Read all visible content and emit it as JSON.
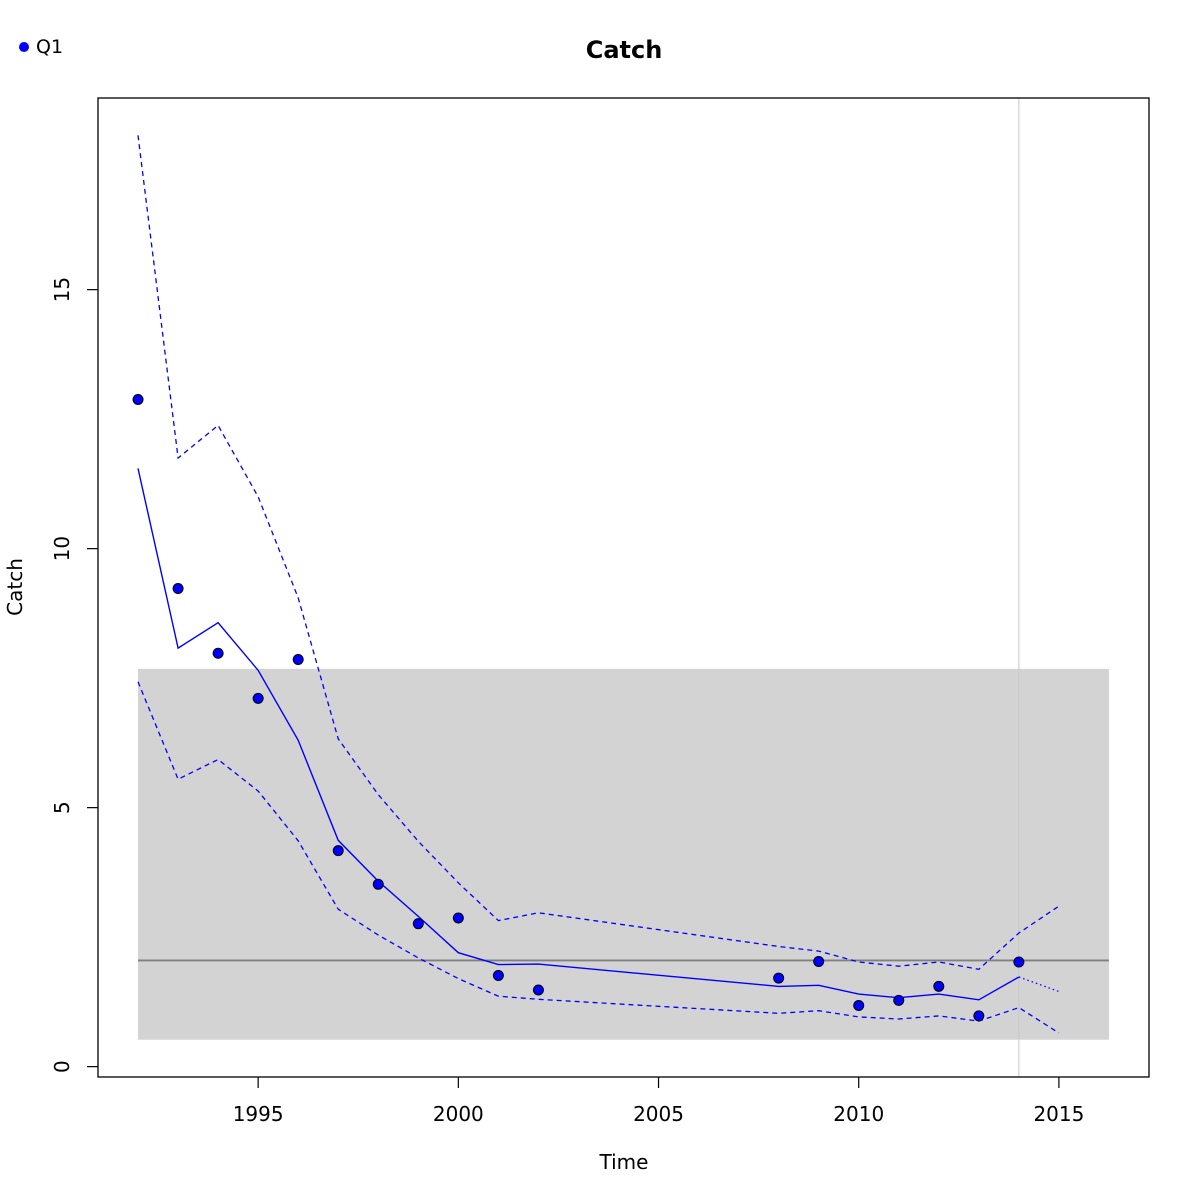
{
  "chart_data": {
    "type": "line",
    "title": "Catch",
    "xlabel": "Time",
    "ylabel": "Catch",
    "xlim": [
      1991.0,
      2017.25
    ],
    "ylim": [
      -0.2,
      18.7
    ],
    "xticks": [
      1995,
      2000,
      2005,
      2010,
      2015
    ],
    "yticks": [
      0,
      5,
      10,
      15
    ],
    "grid": false,
    "legend": {
      "position": "top-left",
      "entries": [
        {
          "name": "Q1",
          "color": "#0000ff",
          "marker": "filled-circle"
        }
      ]
    },
    "shaded_band": {
      "x": [
        1992,
        2016.25
      ],
      "y": [
        0.52,
        7.68
      ],
      "color": "#d3d3d3"
    },
    "horizontal_line": {
      "y": 2.05,
      "color": "#808080"
    },
    "vertical_line": {
      "x": 2014,
      "color": "#c8c8c8"
    },
    "observed": {
      "name": "Q1",
      "color": "#0000ff",
      "x": [
        1992,
        1993,
        1994,
        1995,
        1996,
        1997,
        1998,
        1999,
        2000,
        2001,
        2002,
        2008,
        2009,
        2010,
        2011,
        2012,
        2013,
        2014
      ],
      "y": [
        12.88,
        9.23,
        7.98,
        7.11,
        7.86,
        4.17,
        3.52,
        2.76,
        2.87,
        1.76,
        1.48,
        1.71,
        2.03,
        1.18,
        1.28,
        1.55,
        0.98,
        2.02
      ]
    },
    "fitted": {
      "color": "#0000ff",
      "x": [
        1992,
        1993,
        1994,
        1995,
        1996,
        1997,
        1998,
        1999,
        2000,
        2001,
        2002,
        2008,
        2009,
        2010,
        2011,
        2012,
        2013,
        2014
      ],
      "y": [
        11.55,
        8.08,
        8.57,
        7.65,
        6.3,
        4.37,
        3.58,
        2.9,
        2.2,
        1.97,
        1.98,
        1.55,
        1.57,
        1.4,
        1.33,
        1.4,
        1.29,
        1.73
      ]
    },
    "upper": {
      "color": "#0000ff",
      "x": [
        1992,
        1993,
        1994,
        1995,
        1996,
        1997,
        1998,
        1999,
        2000,
        2001,
        2002,
        2008,
        2009,
        2010,
        2011,
        2012,
        2013,
        2014,
        2015
      ],
      "y": [
        17.98,
        11.75,
        12.38,
        11.0,
        9.05,
        6.33,
        5.25,
        4.35,
        3.55,
        2.82,
        2.97,
        2.32,
        2.23,
        2.02,
        1.94,
        2.02,
        1.88,
        2.58,
        3.1
      ]
    },
    "lower": {
      "color": "#0000ff",
      "x": [
        1992,
        1993,
        1994,
        1995,
        1996,
        1997,
        1998,
        1999,
        2000,
        2001,
        2002,
        2008,
        2009,
        2010,
        2011,
        2012,
        2013,
        2014,
        2015
      ],
      "y": [
        7.43,
        5.55,
        5.93,
        5.32,
        4.36,
        3.04,
        2.54,
        2.1,
        1.7,
        1.36,
        1.3,
        1.03,
        1.08,
        0.96,
        0.92,
        0.98,
        0.88,
        1.14,
        0.65
      ]
    },
    "forecast": {
      "color": "#0000ff",
      "x": [
        2014,
        2015
      ],
      "y": [
        1.73,
        1.45
      ]
    }
  }
}
